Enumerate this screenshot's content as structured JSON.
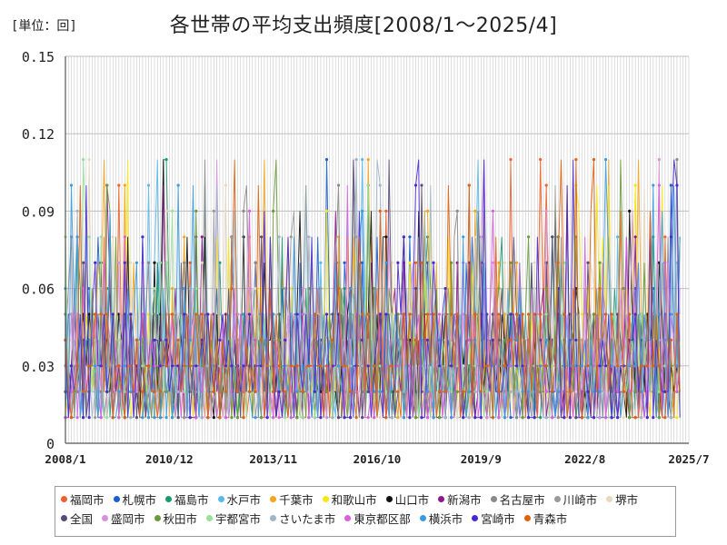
{
  "unit_label": "[単位：回]",
  "chart_data": {
    "type": "line",
    "title": "各世帯の平均支出頻度[2008/1～2025/4]",
    "xlabel": "",
    "ylabel": "",
    "x_range": [
      "2008-01",
      "2025-07"
    ],
    "x_ticks": [
      "2008/1",
      "2010/12",
      "2013/11",
      "2016/10",
      "2019/9",
      "2022/8",
      "2025/7"
    ],
    "y_ticks": [
      "0",
      "0.03",
      "0.06",
      "0.09",
      "0.12",
      "0.15"
    ],
    "ylim": [
      0,
      0.15
    ],
    "grid": true,
    "legend_position": "bottom",
    "series": [
      {
        "name": "福岡市",
        "color": "#f0602a"
      },
      {
        "name": "札幌市",
        "color": "#1a5fd0"
      },
      {
        "name": "福島市",
        "color": "#1a9a6a"
      },
      {
        "name": "水戸市",
        "color": "#5ab8ec"
      },
      {
        "name": "千葉市",
        "color": "#f5a41f"
      },
      {
        "name": "和歌山市",
        "color": "#f7e615"
      },
      {
        "name": "山口市",
        "color": "#111111"
      },
      {
        "name": "新潟市",
        "color": "#8a1a8a"
      },
      {
        "name": "名古屋市",
        "color": "#8a8a8a"
      },
      {
        "name": "川崎市",
        "color": "#9a9a9a"
      },
      {
        "name": "堺市",
        "color": "#e8d8c0"
      },
      {
        "name": "全国",
        "color": "#5a4a7a"
      },
      {
        "name": "盛岡市",
        "color": "#d890d8"
      },
      {
        "name": "秋田市",
        "color": "#6a9a3a"
      },
      {
        "name": "宇都宮市",
        "color": "#9ae09a"
      },
      {
        "name": "さいたま市",
        "color": "#a0b4c8"
      },
      {
        "name": "東京都区部",
        "color": "#d860e0"
      },
      {
        "name": "横浜市",
        "color": "#3a9ae0"
      },
      {
        "name": "宮崎市",
        "color": "#4a2ad0"
      },
      {
        "name": "青森市",
        "color": "#e06010"
      }
    ]
  }
}
